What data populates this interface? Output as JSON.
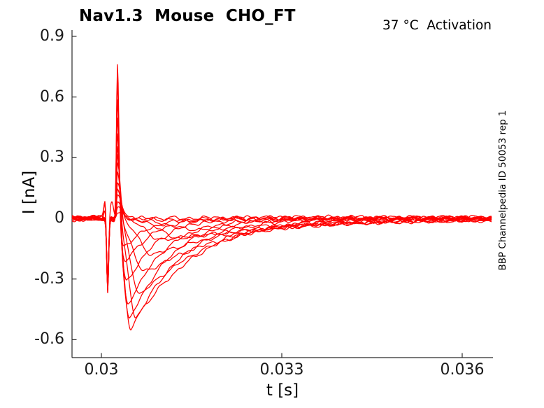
{
  "figure": {
    "title": "Nav1.3  Mouse  CHO_FT",
    "annotation": "37 °C  Activation",
    "watermark": "BBP Channelpedia ID 50053 rep 1"
  },
  "chart_data": {
    "type": "line",
    "title": "Nav1.3  Mouse  CHO_FT",
    "annotation": "37 °C  Activation",
    "right_label": "BBP Channelpedia ID 50053 rep 1",
    "xlabel": "t [s]",
    "ylabel": "I [nA]",
    "xlim": [
      0.02951,
      0.03651
    ],
    "ylim": [
      -0.688,
      0.931
    ],
    "x_ticks": [
      0.03,
      0.033,
      0.036
    ],
    "x_tick_labels": [
      "0.03",
      "0.033",
      "0.036"
    ],
    "y_ticks": [
      0.9,
      0.6,
      0.3,
      0,
      -0.3,
      -0.6
    ],
    "y_tick_labels": [
      "0.9",
      "0.6",
      "0.3",
      "0",
      "-0.3",
      "-0.6"
    ],
    "grid": false,
    "legend": null,
    "trace_color": "#ff0000",
    "axis_color": "#2a2a2a",
    "background": "#ffffff",
    "description": "Family of whole-cell Na+ current traces (voltage-step activation protocol). Each trace: flat noisy baseline at 0 nA, shared narrow capacitive down-spike, step-onset up-spike of increasing amplitude, then inward (negative) Na+ current trough of varying depth and kinetics that relaxes back to baseline.",
    "baseline_nA": 0,
    "noise_amp_nA": 0.011,
    "capacitive_transient": {
      "t_s": 0.0301047,
      "width_s": 2.3e-05
    },
    "onset_spike_t_s": 0.0302674,
    "onset_spike_rise_w_s": 2.4e-05,
    "traces": [
      {
        "spike_peak_nA": 0.03,
        "spike_fall_w_s": 0.000116,
        "cap_depth_nA": 0.287,
        "trough_nA": 0.0,
        "trough_t_s": null,
        "rise_w_s": null,
        "decay_w_s": null,
        "bump_nA": 0,
        "bump_t_s": null,
        "bump_w_s": null
      },
      {
        "spike_peak_nA": 0.05,
        "spike_fall_w_s": 0.000116,
        "cap_depth_nA": 0.293,
        "trough_nA": 0.015,
        "trough_t_s": 0.0318,
        "rise_w_s": 0.0007,
        "decay_w_s": 0.0017,
        "bump_nA": 0,
        "bump_t_s": null,
        "bump_w_s": null
      },
      {
        "spike_peak_nA": 0.08,
        "spike_fall_w_s": 0.000105,
        "cap_depth_nA": 0.3,
        "trough_nA": 0.05,
        "trough_t_s": 0.03157,
        "rise_w_s": 0.00058,
        "decay_w_s": 0.0026,
        "bump_nA": 0,
        "bump_t_s": null,
        "bump_w_s": null
      },
      {
        "spike_peak_nA": 0.11,
        "spike_fall_w_s": 0.000105,
        "cap_depth_nA": 0.307,
        "trough_nA": 0.1,
        "trough_t_s": 0.03131,
        "rise_w_s": 0.00047,
        "decay_w_s": 0.0025,
        "bump_nA": 0,
        "bump_t_s": null,
        "bump_w_s": null
      },
      {
        "spike_peak_nA": 0.15,
        "spike_fall_w_s": 9.3e-05,
        "cap_depth_nA": 0.313,
        "trough_nA": 0.105,
        "trough_t_s": 0.03102,
        "rise_w_s": 0.00035,
        "decay_w_s": 0.0021,
        "bump_nA": 0,
        "bump_t_s": null,
        "bump_w_s": null
      },
      {
        "spike_peak_nA": 0.19,
        "spike_fall_w_s": 8.1e-05,
        "cap_depth_nA": 0.32,
        "trough_nA": 0.175,
        "trough_t_s": 0.030849,
        "rise_w_s": 0.0003,
        "decay_w_s": 0.00155,
        "bump_nA": 0,
        "bump_t_s": null,
        "bump_w_s": null
      },
      {
        "spike_peak_nA": 0.24,
        "spike_fall_w_s": 7e-05,
        "cap_depth_nA": 0.327,
        "trough_nA": 0.26,
        "trough_t_s": 0.030721,
        "rise_w_s": 0.00026,
        "decay_w_s": 0.00135,
        "bump_nA": 0,
        "bump_t_s": null,
        "bump_w_s": null
      },
      {
        "spike_peak_nA": 0.29,
        "spike_fall_w_s": 7e-05,
        "cap_depth_nA": 0.333,
        "trough_nA": 0.38,
        "trough_t_s": 0.03064,
        "rise_w_s": 0.00021,
        "decay_w_s": 0.0012,
        "bump_nA": 0.08,
        "bump_t_s": 0.0301744,
        "bump_w_s": 4e-05
      },
      {
        "spike_peak_nA": 0.34,
        "spike_fall_w_s": 5.8e-05,
        "cap_depth_nA": 0.34,
        "trough_nA": 0.49,
        "trough_t_s": 0.03057,
        "rise_w_s": 0.00017,
        "decay_w_s": 0.00105,
        "bump_nA": 0,
        "bump_t_s": null,
        "bump_w_s": null
      },
      {
        "spike_peak_nA": 0.4,
        "spike_fall_w_s": 5.8e-05,
        "cap_depth_nA": 0.347,
        "trough_nA": 0.545,
        "trough_t_s": 0.030488,
        "rise_w_s": 0.00014,
        "decay_w_s": 0.00081,
        "bump_nA": 0,
        "bump_t_s": null,
        "bump_w_s": null
      },
      {
        "spike_peak_nA": 0.47,
        "spike_fall_w_s": 5.2e-05,
        "cap_depth_nA": 0.353,
        "trough_nA": 0.5,
        "trough_t_s": 0.030465,
        "rise_w_s": 0.000128,
        "decay_w_s": 0.0007,
        "bump_nA": 0,
        "bump_t_s": null,
        "bump_w_s": null
      },
      {
        "spike_peak_nA": 0.55,
        "spike_fall_w_s": 4.7e-05,
        "cap_depth_nA": 0.36,
        "trough_nA": 0.42,
        "trough_t_s": 0.030442,
        "rise_w_s": 0.000116,
        "decay_w_s": 0.0006,
        "bump_nA": 0,
        "bump_t_s": null,
        "bump_w_s": null
      },
      {
        "spike_peak_nA": 0.63,
        "spike_fall_w_s": 4.1e-05,
        "cap_depth_nA": 0.367,
        "trough_nA": 0.32,
        "trough_t_s": 0.030419,
        "rise_w_s": 0.000105,
        "decay_w_s": 0.00052,
        "bump_nA": 0.045,
        "bump_t_s": 0.0300581,
        "bump_w_s": 2.7e-05
      },
      {
        "spike_peak_nA": 0.71,
        "spike_fall_w_s": 3.5e-05,
        "cap_depth_nA": 0.373,
        "trough_nA": 0.22,
        "trough_t_s": 0.030395,
        "rise_w_s": 9.3e-05,
        "decay_w_s": 0.00047,
        "bump_nA": 0.06,
        "bump_t_s": 0.0300581,
        "bump_w_s": 2.7e-05
      },
      {
        "spike_peak_nA": 0.79,
        "spike_fall_w_s": 3.5e-05,
        "cap_depth_nA": 0.38,
        "trough_nA": 0.14,
        "trough_t_s": 0.030372,
        "rise_w_s": 8.1e-05,
        "decay_w_s": 0.00042,
        "bump_nA": 0.09,
        "bump_t_s": 0.0300581,
        "bump_w_s": 2.7e-05
      }
    ]
  }
}
